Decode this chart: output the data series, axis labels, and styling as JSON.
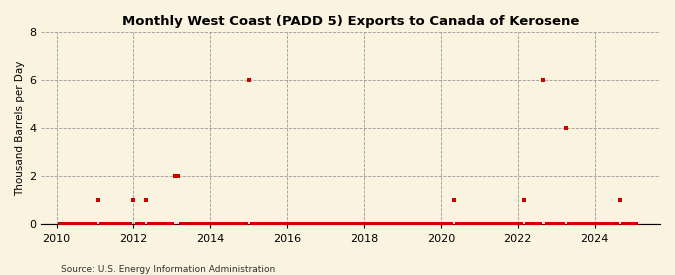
{
  "title": "Monthly West Coast (PADD 5) Exports to Canada of Kerosene",
  "ylabel": "Thousand Barrels per Day",
  "source": "Source: U.S. Energy Information Administration",
  "background_color": "#faf3e0",
  "plot_bg_color": "#faf3e0",
  "marker_color": "#cc0000",
  "marker_size": 8,
  "ylim": [
    0,
    8
  ],
  "yticks": [
    0,
    2,
    4,
    6,
    8
  ],
  "xlim_start": 2009.6,
  "xlim_end": 2025.7,
  "xticks": [
    2010,
    2012,
    2014,
    2016,
    2018,
    2020,
    2022,
    2024
  ],
  "data_points": [
    [
      2010.083,
      0.0
    ],
    [
      2010.167,
      0.0
    ],
    [
      2010.25,
      0.0
    ],
    [
      2010.333,
      0.0
    ],
    [
      2010.417,
      0.0
    ],
    [
      2010.5,
      0.0
    ],
    [
      2010.583,
      0.0
    ],
    [
      2010.667,
      0.0
    ],
    [
      2010.75,
      0.0
    ],
    [
      2010.833,
      0.0
    ],
    [
      2010.917,
      0.0
    ],
    [
      2011.0,
      0.0
    ],
    [
      2011.083,
      1.0
    ],
    [
      2011.167,
      0.0
    ],
    [
      2011.25,
      0.0
    ],
    [
      2011.333,
      0.0
    ],
    [
      2011.417,
      0.0
    ],
    [
      2011.5,
      0.0
    ],
    [
      2011.583,
      0.0
    ],
    [
      2011.667,
      0.0
    ],
    [
      2011.75,
      0.0
    ],
    [
      2011.833,
      0.0
    ],
    [
      2011.917,
      0.0
    ],
    [
      2012.0,
      1.0
    ],
    [
      2012.083,
      0.0
    ],
    [
      2012.167,
      0.0
    ],
    [
      2012.25,
      0.0
    ],
    [
      2012.333,
      1.0
    ],
    [
      2012.417,
      0.0
    ],
    [
      2012.5,
      0.0
    ],
    [
      2012.583,
      0.0
    ],
    [
      2012.667,
      0.0
    ],
    [
      2012.75,
      0.0
    ],
    [
      2012.833,
      0.0
    ],
    [
      2012.917,
      0.0
    ],
    [
      2013.0,
      0.0
    ],
    [
      2013.083,
      2.0
    ],
    [
      2013.167,
      2.0
    ],
    [
      2013.25,
      0.0
    ],
    [
      2013.333,
      0.0
    ],
    [
      2013.417,
      0.0
    ],
    [
      2013.5,
      0.0
    ],
    [
      2013.583,
      0.0
    ],
    [
      2013.667,
      0.0
    ],
    [
      2013.75,
      0.0
    ],
    [
      2013.833,
      0.0
    ],
    [
      2013.917,
      0.0
    ],
    [
      2014.0,
      0.0
    ],
    [
      2014.083,
      0.0
    ],
    [
      2014.167,
      0.0
    ],
    [
      2014.25,
      0.0
    ],
    [
      2014.333,
      0.0
    ],
    [
      2014.417,
      0.0
    ],
    [
      2014.5,
      0.0
    ],
    [
      2014.583,
      0.0
    ],
    [
      2014.667,
      0.0
    ],
    [
      2014.75,
      0.0
    ],
    [
      2014.833,
      0.0
    ],
    [
      2014.917,
      0.0
    ],
    [
      2015.0,
      6.0
    ],
    [
      2015.083,
      0.0
    ],
    [
      2015.167,
      0.0
    ],
    [
      2015.25,
      0.0
    ],
    [
      2015.333,
      0.0
    ],
    [
      2015.417,
      0.0
    ],
    [
      2015.5,
      0.0
    ],
    [
      2015.583,
      0.0
    ],
    [
      2015.667,
      0.0
    ],
    [
      2015.75,
      0.0
    ],
    [
      2015.833,
      0.0
    ],
    [
      2015.917,
      0.0
    ],
    [
      2016.0,
      0.0
    ],
    [
      2016.083,
      0.0
    ],
    [
      2016.167,
      0.0
    ],
    [
      2016.25,
      0.0
    ],
    [
      2016.333,
      0.0
    ],
    [
      2016.417,
      0.0
    ],
    [
      2016.5,
      0.0
    ],
    [
      2016.583,
      0.0
    ],
    [
      2016.667,
      0.0
    ],
    [
      2016.75,
      0.0
    ],
    [
      2016.833,
      0.0
    ],
    [
      2016.917,
      0.0
    ],
    [
      2017.0,
      0.0
    ],
    [
      2017.083,
      0.0
    ],
    [
      2017.167,
      0.0
    ],
    [
      2017.25,
      0.0
    ],
    [
      2017.333,
      0.0
    ],
    [
      2017.417,
      0.0
    ],
    [
      2017.5,
      0.0
    ],
    [
      2017.583,
      0.0
    ],
    [
      2017.667,
      0.0
    ],
    [
      2017.75,
      0.0
    ],
    [
      2017.833,
      0.0
    ],
    [
      2017.917,
      0.0
    ],
    [
      2018.0,
      0.0
    ],
    [
      2018.083,
      0.0
    ],
    [
      2018.167,
      0.0
    ],
    [
      2018.25,
      0.0
    ],
    [
      2018.333,
      0.0
    ],
    [
      2018.417,
      0.0
    ],
    [
      2018.5,
      0.0
    ],
    [
      2018.583,
      0.0
    ],
    [
      2018.667,
      0.0
    ],
    [
      2018.75,
      0.0
    ],
    [
      2018.833,
      0.0
    ],
    [
      2018.917,
      0.0
    ],
    [
      2019.0,
      0.0
    ],
    [
      2019.083,
      0.0
    ],
    [
      2019.167,
      0.0
    ],
    [
      2019.25,
      0.0
    ],
    [
      2019.333,
      0.0
    ],
    [
      2019.417,
      0.0
    ],
    [
      2019.5,
      0.0
    ],
    [
      2019.583,
      0.0
    ],
    [
      2019.667,
      0.0
    ],
    [
      2019.75,
      0.0
    ],
    [
      2019.833,
      0.0
    ],
    [
      2019.917,
      0.0
    ],
    [
      2020.0,
      0.0
    ],
    [
      2020.083,
      0.0
    ],
    [
      2020.167,
      0.0
    ],
    [
      2020.25,
      0.0
    ],
    [
      2020.333,
      1.0
    ],
    [
      2020.417,
      0.0
    ],
    [
      2020.5,
      0.0
    ],
    [
      2020.583,
      0.0
    ],
    [
      2020.667,
      0.0
    ],
    [
      2020.75,
      0.0
    ],
    [
      2020.833,
      0.0
    ],
    [
      2020.917,
      0.0
    ],
    [
      2021.0,
      0.0
    ],
    [
      2021.083,
      0.0
    ],
    [
      2021.167,
      0.0
    ],
    [
      2021.25,
      0.0
    ],
    [
      2021.333,
      0.0
    ],
    [
      2021.417,
      0.0
    ],
    [
      2021.5,
      0.0
    ],
    [
      2021.583,
      0.0
    ],
    [
      2021.667,
      0.0
    ],
    [
      2021.75,
      0.0
    ],
    [
      2021.833,
      0.0
    ],
    [
      2021.917,
      0.0
    ],
    [
      2022.0,
      0.0
    ],
    [
      2022.083,
      0.0
    ],
    [
      2022.167,
      1.0
    ],
    [
      2022.25,
      0.0
    ],
    [
      2022.333,
      0.0
    ],
    [
      2022.417,
      0.0
    ],
    [
      2022.5,
      0.0
    ],
    [
      2022.583,
      0.0
    ],
    [
      2022.667,
      6.0
    ],
    [
      2022.75,
      0.0
    ],
    [
      2022.833,
      0.0
    ],
    [
      2022.917,
      0.0
    ],
    [
      2023.0,
      0.0
    ],
    [
      2023.083,
      0.0
    ],
    [
      2023.167,
      0.0
    ],
    [
      2023.25,
      4.0
    ],
    [
      2023.333,
      0.0
    ],
    [
      2023.417,
      0.0
    ],
    [
      2023.5,
      0.0
    ],
    [
      2023.583,
      0.0
    ],
    [
      2023.667,
      0.0
    ],
    [
      2023.75,
      0.0
    ],
    [
      2023.833,
      0.0
    ],
    [
      2023.917,
      0.0
    ],
    [
      2024.0,
      0.0
    ],
    [
      2024.083,
      0.0
    ],
    [
      2024.167,
      0.0
    ],
    [
      2024.25,
      0.0
    ],
    [
      2024.333,
      0.0
    ],
    [
      2024.417,
      0.0
    ],
    [
      2024.5,
      0.0
    ],
    [
      2024.583,
      0.0
    ],
    [
      2024.667,
      1.0
    ],
    [
      2024.75,
      0.0
    ],
    [
      2024.833,
      0.0
    ],
    [
      2024.917,
      0.0
    ],
    [
      2025.0,
      0.0
    ],
    [
      2025.083,
      0.0
    ]
  ]
}
